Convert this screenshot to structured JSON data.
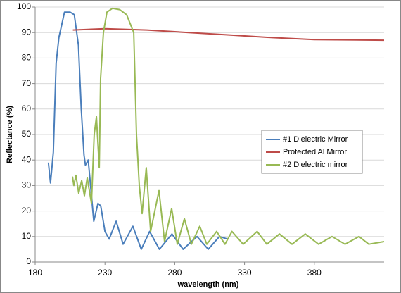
{
  "chart_data": {
    "type": "line",
    "x_label": "wavelength (nm)",
    "y_label": "Reflectance (%)",
    "xlim": [
      180,
      430
    ],
    "xticks": [
      180,
      230,
      280,
      330,
      380
    ],
    "ylim": [
      0,
      100
    ],
    "yticks": [
      0,
      10,
      20,
      30,
      40,
      50,
      60,
      70,
      80,
      90,
      100
    ],
    "grid": true,
    "legend_position": "right",
    "series": [
      {
        "name": "#1 Dielectric Mirror",
        "color": "#4a7ebb",
        "x": [
          189.5,
          191,
          193,
          195,
          197,
          201,
          205,
          208,
          211,
          213,
          215,
          216,
          218,
          220,
          222,
          225,
          227,
          230,
          233,
          238,
          243,
          250,
          256,
          262,
          269,
          278,
          286,
          296,
          304,
          312,
          318
        ],
        "values": [
          39,
          31,
          43,
          78,
          88,
          98,
          98,
          97,
          85,
          60,
          42,
          38,
          40,
          28,
          16,
          23,
          22,
          12,
          9,
          16,
          7,
          14,
          5,
          12,
          5,
          11,
          5,
          10,
          5,
          10,
          9
        ]
      },
      {
        "name": "Protected Al Mirror",
        "color": "#be4b48",
        "x": [
          207,
          230,
          260,
          290,
          320,
          350,
          380,
          430
        ],
        "values": [
          91,
          91.5,
          91,
          90,
          89,
          88,
          87.2,
          87
        ]
      },
      {
        "name": "#2 Dielectric mirror",
        "color": "#98b954",
        "x": [
          206.7,
          207.7,
          209.2,
          211.2,
          213.3,
          215.3,
          217.3,
          220.3,
          222.3,
          223.9,
          225.9,
          226.9,
          228.9,
          231.4,
          235.4,
          240.5,
          245.5,
          250.6,
          252.6,
          254.6,
          256.6,
          259.6,
          262.7,
          268.7,
          272.7,
          277.8,
          281.8,
          286.9,
          291.9,
          297.9,
          303,
          310,
          316,
          321,
          329,
          339,
          346,
          355,
          364,
          373.5,
          383,
          392.7,
          402,
          412,
          419,
          430
        ],
        "values": [
          33.5,
          30,
          34,
          27,
          32,
          26,
          33,
          23,
          50,
          57,
          37,
          72,
          90,
          98,
          99.5,
          99,
          97,
          90,
          50,
          30,
          19,
          37,
          12,
          28,
          8,
          21,
          7,
          17,
          7,
          14,
          7,
          12,
          7,
          12,
          7,
          12,
          7,
          11,
          7,
          11,
          7,
          10,
          7,
          10,
          7,
          8
        ]
      }
    ]
  }
}
